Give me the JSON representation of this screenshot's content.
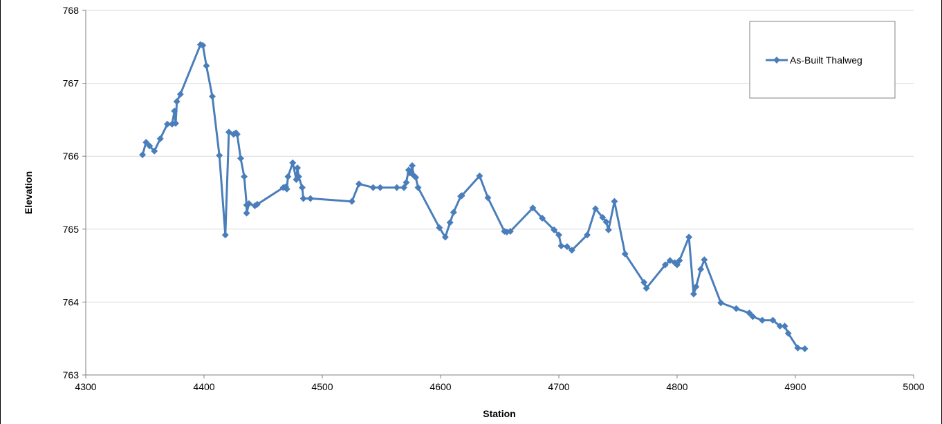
{
  "chart_data": {
    "type": "line",
    "title": "",
    "xlabel": "Station",
    "ylabel": "Elevation",
    "xlim": [
      4300,
      5000
    ],
    "ylim": [
      763,
      768
    ],
    "xticks": [
      "4300",
      "4400",
      "4500",
      "4600",
      "4700",
      "4800",
      "4900",
      "5000"
    ],
    "yticks": [
      "763",
      "764",
      "765",
      "766",
      "767",
      "768"
    ],
    "grid": "horizontal",
    "legend_position": "top-right",
    "series": [
      {
        "name": "As-Built Thalweg",
        "color": "#4a7ebb",
        "marker": "diamond",
        "x": [
          4348,
          4351,
          4354,
          4358,
          4363,
          4369,
          4373,
          4375,
          4376,
          4377,
          4380,
          4397,
          4399,
          4402,
          4407,
          4413,
          4418,
          4421,
          4425,
          4427,
          4428,
          4431,
          4434,
          4436,
          4436,
          4438,
          4443,
          4445,
          4467,
          4469,
          4470,
          4471,
          4475,
          4478,
          4479,
          4480,
          4483,
          4484,
          4490,
          4525,
          4531,
          4543,
          4549,
          4563,
          4569,
          4571,
          4573,
          4574,
          4575,
          4576,
          4577,
          4579,
          4581,
          4599,
          4604,
          4608,
          4611,
          4617,
          4618,
          4633,
          4640,
          4654,
          4656,
          4659,
          4678,
          4686,
          4696,
          4700,
          4702,
          4707,
          4711,
          4724,
          4731,
          4737,
          4740,
          4742,
          4747,
          4756,
          4772,
          4774,
          4790,
          4794,
          4798,
          4800,
          4802,
          4810,
          4814,
          4816,
          4820,
          4823,
          4837,
          4850,
          4861,
          4864,
          4872,
          4881,
          4887,
          4891,
          4894,
          4902,
          4908
        ],
        "y": [
          766.02,
          766.19,
          766.14,
          766.07,
          766.24,
          766.44,
          766.44,
          766.62,
          766.45,
          766.75,
          766.85,
          767.53,
          767.52,
          767.24,
          766.82,
          766.01,
          764.92,
          766.33,
          766.3,
          766.32,
          766.3,
          765.97,
          765.72,
          765.33,
          765.22,
          765.35,
          765.32,
          765.34,
          765.57,
          765.58,
          765.55,
          765.72,
          765.91,
          765.68,
          765.84,
          765.72,
          765.57,
          765.42,
          765.42,
          765.38,
          765.62,
          765.57,
          765.57,
          765.57,
          765.57,
          765.64,
          765.81,
          765.77,
          765.79,
          765.87,
          765.74,
          765.71,
          765.57,
          765.02,
          764.89,
          765.09,
          765.23,
          765.45,
          765.46,
          765.73,
          765.43,
          764.97,
          764.96,
          764.97,
          765.29,
          765.15,
          764.99,
          764.92,
          764.77,
          764.76,
          764.71,
          764.92,
          765.28,
          765.16,
          765.1,
          764.99,
          765.38,
          764.66,
          764.27,
          764.19,
          764.51,
          764.57,
          764.54,
          764.51,
          764.57,
          764.89,
          764.11,
          764.21,
          764.45,
          764.58,
          763.99,
          763.91,
          763.85,
          763.8,
          763.75,
          763.75,
          763.67,
          763.67,
          763.57,
          763.37,
          763.36
        ]
      }
    ]
  }
}
